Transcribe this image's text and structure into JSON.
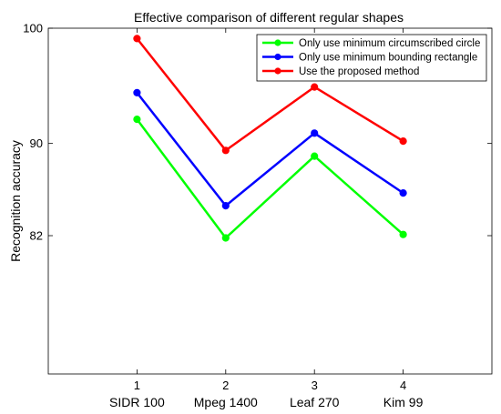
{
  "chart_data": {
    "type": "line",
    "title": "Effective comparison of different regular shapes",
    "xlabel": "",
    "ylabel": "Recognition accuracy",
    "x_ticks": [
      "1",
      "2",
      "3",
      "4"
    ],
    "categories": [
      "SIDR 100",
      "Mpeg 1400",
      "Leaf 270",
      "Kim 99"
    ],
    "y_ticks": [
      "100",
      "90",
      "82"
    ],
    "xlim": [
      0,
      5
    ],
    "ylim": [
      70,
      100
    ],
    "grid": false,
    "legend_position": "top-right",
    "series": [
      {
        "name": "Only use minimum circumscribed circle",
        "color": "#00ff00",
        "values": [
          92.1,
          81.8,
          88.9,
          82.1
        ]
      },
      {
        "name": "Only use minimum bounding rectangle",
        "color": "#0000ff",
        "values": [
          94.4,
          84.6,
          90.9,
          85.7
        ]
      },
      {
        "name": "Use the proposed method",
        "color": "#ff0000",
        "values": [
          99.1,
          89.4,
          94.9,
          90.2
        ]
      }
    ]
  }
}
